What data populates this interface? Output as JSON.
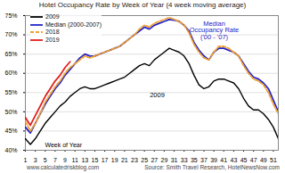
{
  "chart_data": {
    "type": "line",
    "title": "Hotel Occupancy Rate by Week of Year (4 week moving average)",
    "x_label": "Week of Year",
    "annotations": [
      "Median Occupancy Rate ('00 - '07)",
      "2009"
    ],
    "source": "Source: Smith Travel Research, HotelNewsNow.com",
    "credit": "www.calculatedriskblog.com",
    "x": [
      1,
      2,
      3,
      4,
      5,
      6,
      7,
      8,
      9,
      10,
      11,
      12,
      13,
      14,
      15,
      16,
      17,
      18,
      19,
      20,
      21,
      22,
      23,
      24,
      25,
      26,
      27,
      28,
      29,
      30,
      31,
      32,
      33,
      34,
      35,
      36,
      37,
      38,
      39,
      40,
      41,
      42,
      43,
      44,
      45,
      46,
      47,
      48,
      49,
      50,
      51,
      52
    ],
    "series": [
      {
        "name": "2009",
        "color": "#000000",
        "line_style": "solid",
        "values": [
          43,
          41.5,
          43,
          45,
          47,
          48.5,
          50,
          51.5,
          52.5,
          54,
          55,
          56,
          56.5,
          56,
          56,
          56.5,
          57,
          57.5,
          58,
          58.5,
          59,
          60,
          61,
          62,
          62.5,
          62,
          63.5,
          64.5,
          65.5,
          66.5,
          66,
          65.5,
          64.5,
          62.5,
          59.5,
          57,
          56,
          56.5,
          58,
          58.5,
          58.5,
          58,
          57.5,
          56,
          53.5,
          51.5,
          50.5,
          50.5,
          49.5,
          48,
          46,
          43
        ]
      },
      {
        "name": "Median (2000-2007)",
        "color": "#2424c8",
        "line_style": "solid",
        "values": [
          46,
          44.5,
          47,
          49.5,
          52,
          54,
          56,
          57.5,
          59.5,
          61,
          62.5,
          64,
          65,
          64.5,
          64.5,
          65,
          65.5,
          66,
          66.5,
          67,
          68,
          69,
          70,
          71,
          72,
          71.5,
          72.5,
          73,
          73.5,
          74,
          73.8,
          73.5,
          72.5,
          71,
          68,
          66,
          64.5,
          63.5,
          65.5,
          66.5,
          66.5,
          66,
          65.5,
          64.5,
          62.5,
          60.5,
          59,
          58.5,
          57.5,
          56,
          53,
          50
        ]
      },
      {
        "name": "2018",
        "color": "#f0a030",
        "line_style": "dashed",
        "values": [
          47.5,
          45,
          47,
          49.5,
          52.5,
          54.5,
          56.5,
          58,
          60,
          61.5,
          62.5,
          63.5,
          64.5,
          64,
          64.5,
          65,
          65.5,
          66,
          66.5,
          67,
          68,
          69,
          70,
          71.5,
          72.5,
          72,
          73,
          73.5,
          74,
          74.5,
          74,
          73.5,
          72.5,
          70.5,
          67.5,
          65.5,
          64,
          63.5,
          65.5,
          67,
          67,
          66.5,
          65.5,
          64.5,
          62,
          60,
          58.5,
          58,
          57,
          55,
          52,
          49.5
        ]
      },
      {
        "name": "2019",
        "color": "#e02020",
        "line_style": "solid",
        "values": [
          48.5,
          46.5,
          49,
          51.5,
          54,
          56,
          58,
          59.5,
          61.5,
          63,
          null,
          null,
          null,
          null,
          null,
          null,
          null,
          null,
          null,
          null,
          null,
          null,
          null,
          null,
          null,
          null,
          null,
          null,
          null,
          null,
          null,
          null,
          null,
          null,
          null,
          null,
          null,
          null,
          null,
          null,
          null,
          null,
          null,
          null,
          null,
          null,
          null,
          null,
          null,
          null,
          null,
          null
        ]
      }
    ],
    "xlim": [
      1,
      52
    ],
    "xticks": [
      1,
      3,
      5,
      7,
      9,
      11,
      13,
      15,
      17,
      19,
      21,
      23,
      25,
      27,
      29,
      31,
      33,
      35,
      37,
      39,
      41,
      43,
      45,
      47,
      49,
      51
    ],
    "ylim": [
      40,
      75
    ],
    "yticks": [
      {
        "value": 40,
        "label": "40%"
      },
      {
        "value": 45,
        "label": "45%"
      },
      {
        "value": 50,
        "label": "50%"
      },
      {
        "value": 55,
        "label": "55%"
      },
      {
        "value": 60,
        "label": "60%"
      },
      {
        "value": 65,
        "label": "65%"
      },
      {
        "value": 70,
        "label": "70%"
      },
      {
        "value": 75,
        "label": "75%"
      }
    ],
    "grid": true,
    "legend": "top-left"
  }
}
